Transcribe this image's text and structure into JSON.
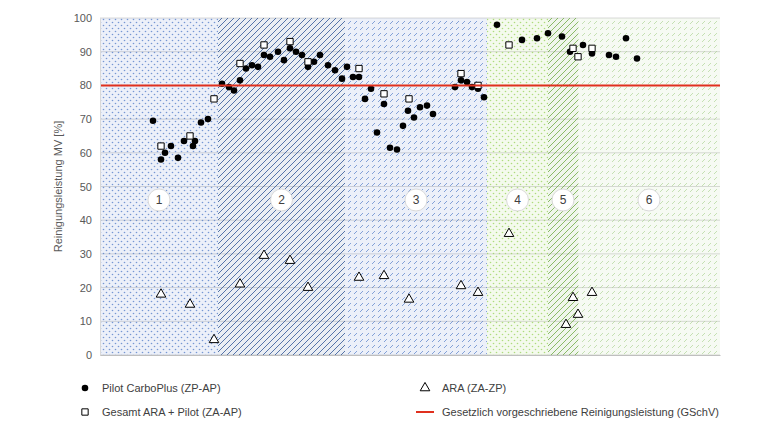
{
  "chart_data": {
    "type": "scatter",
    "y_label": "Reinigungsleistung MV [%]",
    "xlim": [
      0,
      62
    ],
    "xticks": [],
    "ylim": [
      0,
      100
    ],
    "yticks": [
      0,
      10,
      20,
      30,
      40,
      50,
      60,
      70,
      80,
      90,
      100
    ],
    "grid": true,
    "tick_labels": "y",
    "regions": {
      "labels": [
        "1",
        "2",
        "3",
        "4",
        "5",
        "6"
      ],
      "bounds": [
        0,
        11.8,
        24.5,
        38.7,
        44.8,
        47.8,
        62
      ],
      "colors": [
        "#4472c4",
        "#2f5597",
        "#4472c4",
        "#92d050",
        "#70ad47",
        "#a9d18e"
      ]
    },
    "series": [
      {
        "name": "Pilot CarboPlus (ZP-AP)",
        "type": "scatter",
        "marker": "circle",
        "color": "#000000",
        "x": [
          5.3,
          6.1,
          6.5,
          7.1,
          7.8,
          8.4,
          9.3,
          9.5,
          10.1,
          10.8,
          12.2,
          12.9,
          13.4,
          14,
          14.6,
          15.2,
          15.8,
          16.4,
          17,
          17.8,
          18.4,
          19,
          19.6,
          20.2,
          20.8,
          21.4,
          22,
          22.8,
          23.5,
          24.2,
          24.7,
          25.3,
          25.9,
          26.5,
          27.1,
          27.7,
          28.4,
          29,
          29.7,
          30.3,
          30.8,
          31.4,
          32,
          32.7,
          33.3,
          35.5,
          36.1,
          36.7,
          37.2,
          37.8,
          38.4,
          39.7,
          42.2,
          43.7,
          44.8,
          46.2,
          47,
          48.3,
          49.2,
          50.9,
          51.6,
          52.6,
          53.7
        ],
        "values": [
          69.5,
          58,
          60,
          62,
          58.5,
          63.5,
          62,
          63.5,
          69,
          70,
          80.5,
          79.5,
          78.5,
          81.5,
          85,
          86,
          85.5,
          89,
          88.5,
          90,
          87.5,
          91,
          90,
          89,
          85.5,
          87,
          89,
          86,
          84.5,
          82,
          85.5,
          82.5,
          82.5,
          76,
          79,
          66,
          74.5,
          61.5,
          61,
          68,
          72.5,
          70.5,
          73.5,
          74,
          71.5,
          79.5,
          81.5,
          81,
          79.5,
          79,
          76.5,
          98,
          93.5,
          94,
          95.5,
          94.5,
          90,
          92,
          89.5,
          89,
          88.5,
          94,
          88
        ]
      },
      {
        "name": "ARA (ZA-ZP)",
        "type": "scatter",
        "marker": "triangle-open",
        "color": "#000000",
        "x": [
          6.1,
          9,
          11.4,
          14,
          16.4,
          19,
          20.8,
          25.9,
          28.4,
          30.9,
          36.1,
          37.8,
          40.9,
          46.6,
          47.3,
          47.8,
          49.2
        ],
        "values": [
          18,
          15,
          4.5,
          21,
          29.5,
          28,
          20,
          23,
          23.5,
          16.5,
          20.5,
          18.5,
          36,
          9,
          17,
          12,
          18.5
        ]
      },
      {
        "name": "Gesamt ARA + Pilot (ZA-AP)",
        "type": "scatter",
        "marker": "square-open",
        "color": "#000000",
        "x": [
          6.1,
          9,
          11.4,
          14,
          16.4,
          19,
          20.8,
          25.9,
          28.4,
          30.9,
          36.1,
          37.8,
          40.9,
          47.3,
          47.8,
          49.2
        ],
        "values": [
          62,
          65,
          76,
          86.5,
          92,
          93,
          87,
          85,
          77.5,
          76,
          83.5,
          80,
          92,
          91,
          88.5,
          91
        ]
      },
      {
        "name": "Gesetzlich vorgeschriebene Reinigungsleistung (GSchV)",
        "type": "line",
        "line_style": "solid",
        "color": "#e0301e",
        "x": [
          0,
          62
        ],
        "values": [
          80,
          80
        ]
      }
    ]
  }
}
